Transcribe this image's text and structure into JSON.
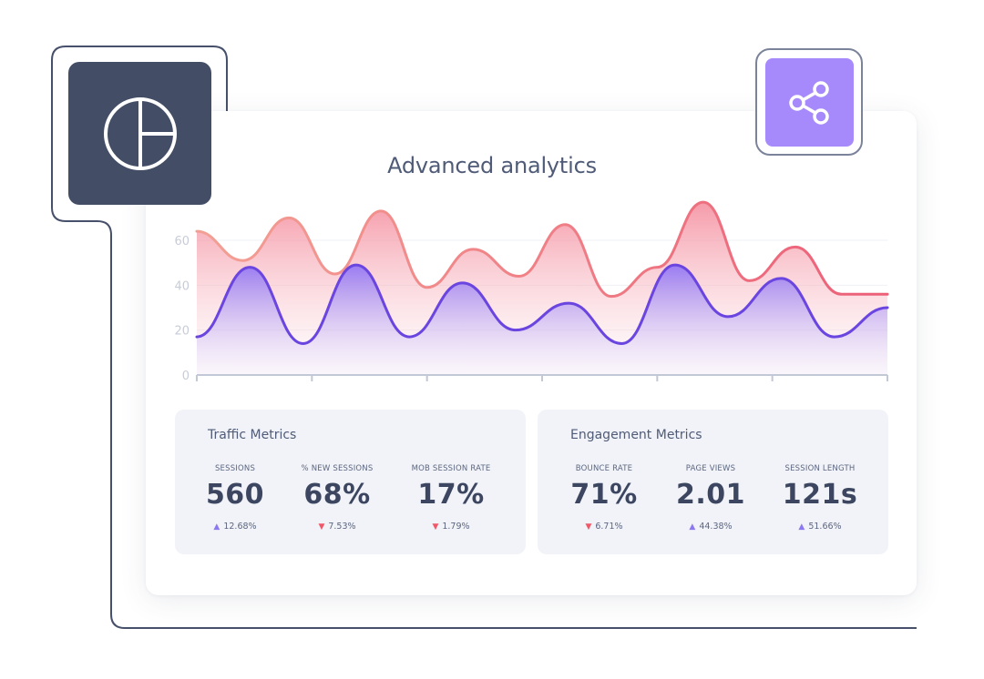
{
  "title": "Advanced analytics",
  "icons": {
    "left_badge": "pie-chart-icon",
    "right_badge": "share-icon"
  },
  "colors": {
    "dark_badge": "#434e66",
    "purple_badge": "#a68afc",
    "series_red": "#f06a7d",
    "series_purple": "#6a45e0",
    "trend_up": "#8c78f0",
    "trend_down": "#f0586a"
  },
  "chart_data": {
    "type": "area",
    "title": "Advanced analytics",
    "xlabel": "",
    "ylabel": "",
    "ylim": [
      0,
      80
    ],
    "yticks": [
      0,
      20,
      40,
      60
    ],
    "x_tick_count": 7,
    "grid": false,
    "series": [
      {
        "values": [
          64,
          51,
          70,
          45,
          73,
          39,
          56,
          44,
          67,
          35,
          48,
          77,
          42,
          57,
          36,
          36
        ]
      },
      {
        "values": [
          17,
          48,
          14,
          49,
          17,
          41,
          20,
          32,
          14,
          49,
          26,
          43,
          17,
          30
        ]
      }
    ]
  },
  "traffic": {
    "title": "Traffic Metrics",
    "metrics": [
      {
        "label": "SESSIONS",
        "value": "560",
        "change": "12.68%",
        "trend": "up"
      },
      {
        "label": "% NEW SESSIONS",
        "value": "68%",
        "change": "7.53%",
        "trend": "down"
      },
      {
        "label": "MOB SESSION RATE",
        "value": "17%",
        "change": "1.79%",
        "trend": "down"
      }
    ]
  },
  "engagement": {
    "title": "Engagement Metrics",
    "metrics": [
      {
        "label": "BOUNCE RATE",
        "value": "71%",
        "change": "6.71%",
        "trend": "down"
      },
      {
        "label": "PAGE VIEWS",
        "value": "2.01",
        "change": "44.38%",
        "trend": "up"
      },
      {
        "label": "SESSION LENGTH",
        "value": "121s",
        "change": "51.66%",
        "trend": "up"
      }
    ]
  }
}
